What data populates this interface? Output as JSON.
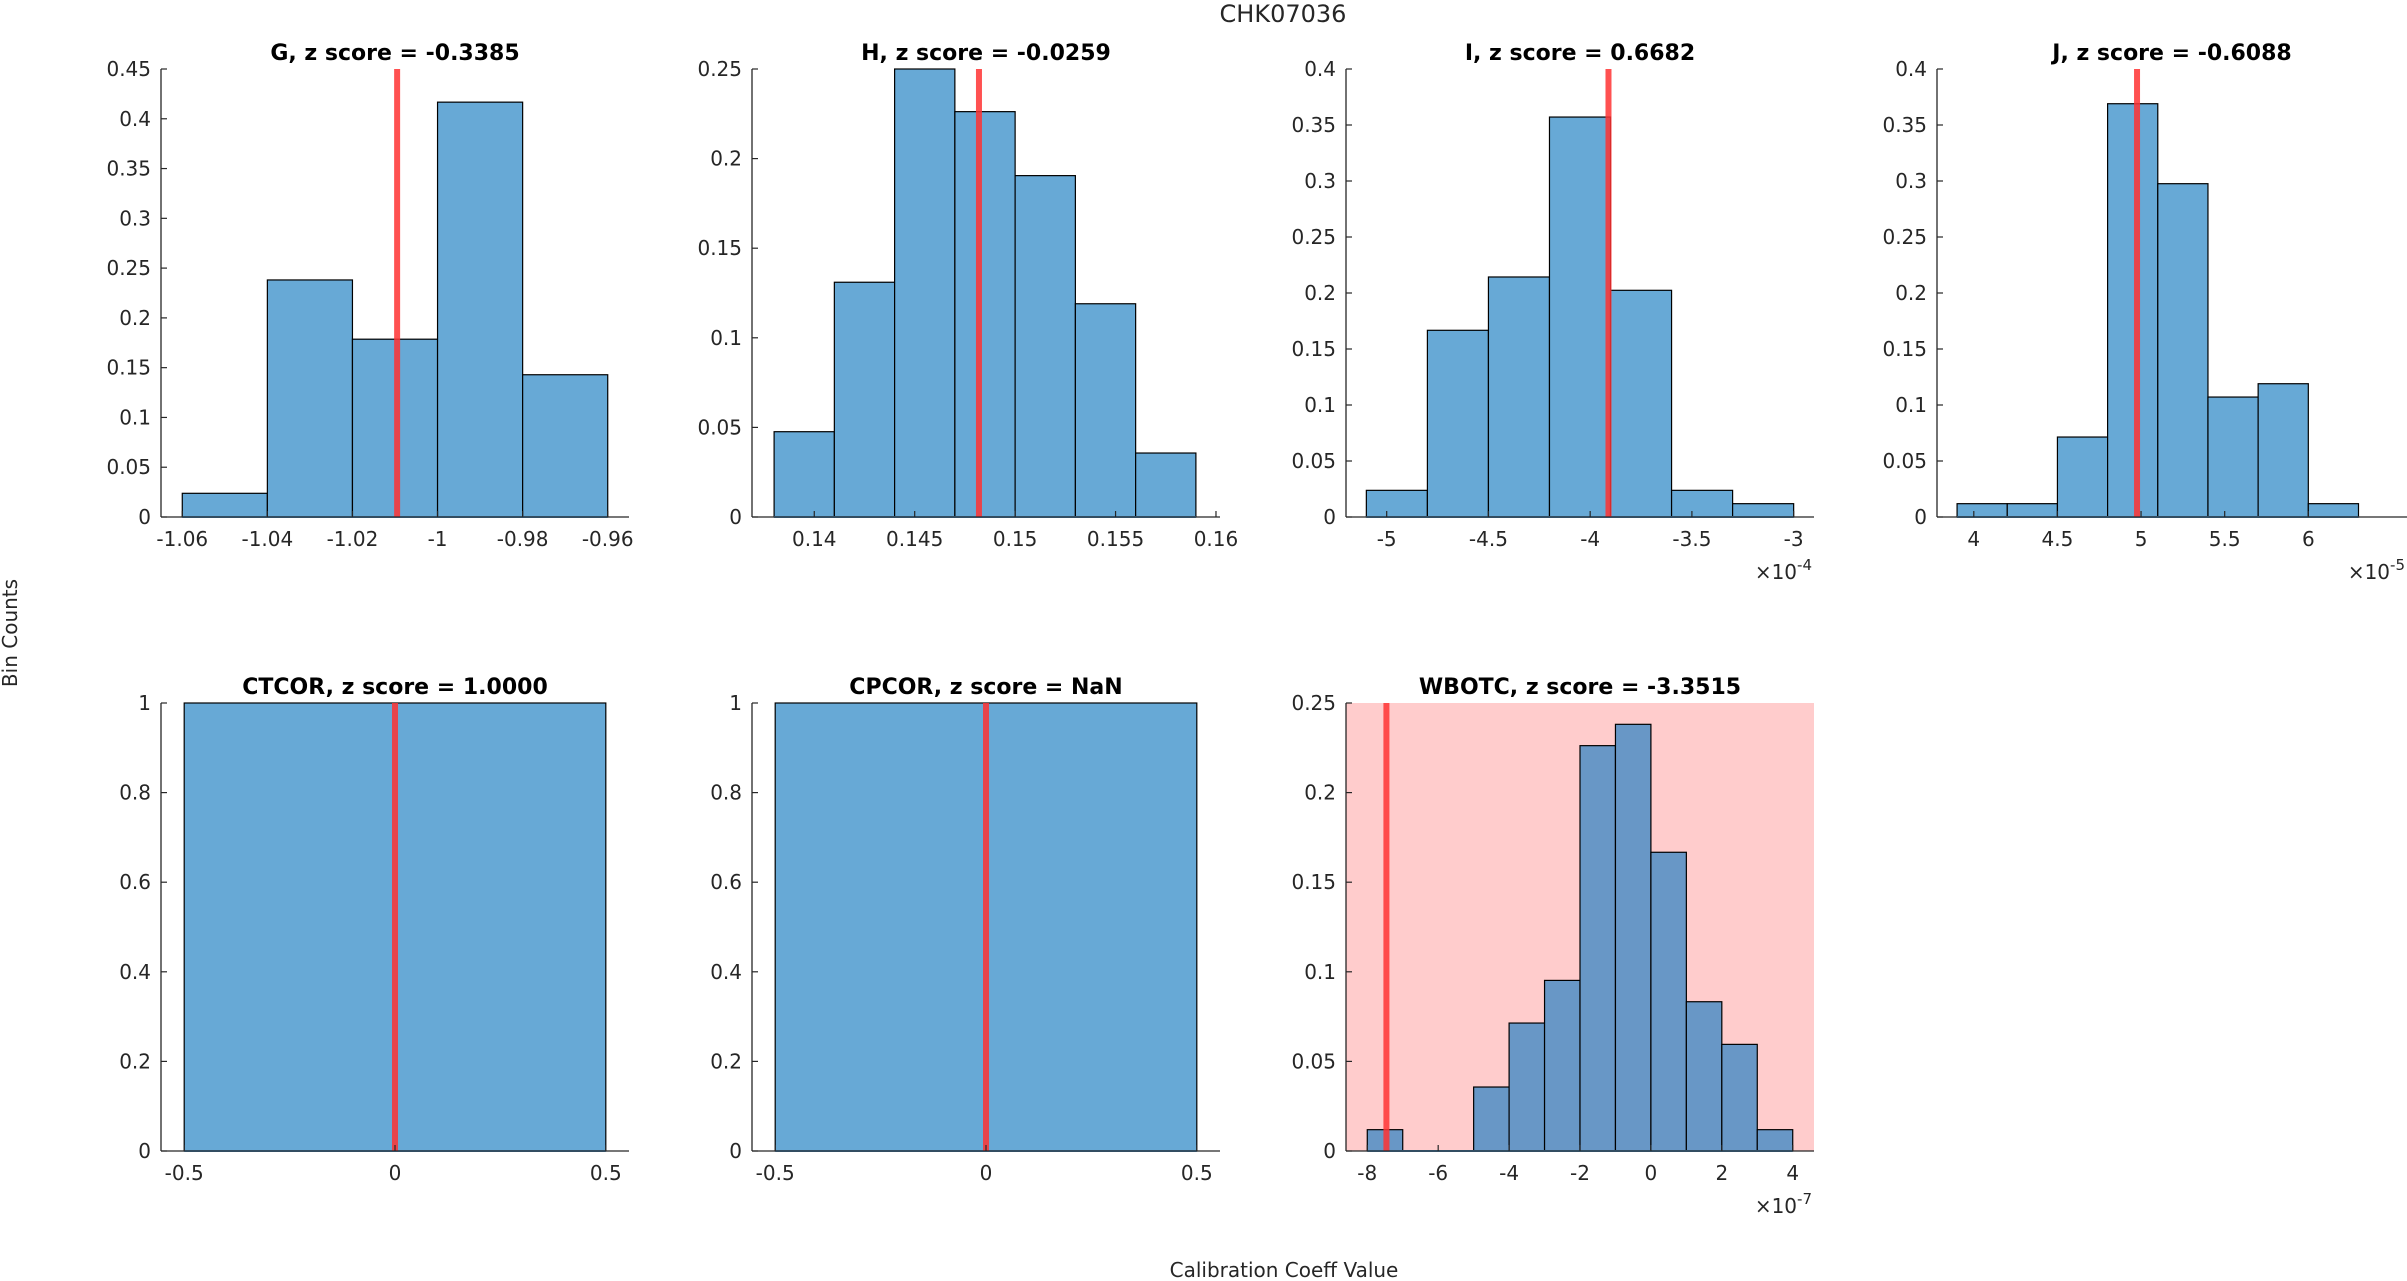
{
  "figure": {
    "title": "CHK07036",
    "ylabel": "Bin Counts",
    "xlabel": "Calibration Coeff Value",
    "colors": {
      "bar_fill": "#67a9d6",
      "bar_fill_on_alert": "#6897c6",
      "bar_edge": "#000000",
      "marker_line": "#ff3333",
      "alert_background": "#ffcccc",
      "axis": "#262626"
    }
  },
  "chart_data": [
    {
      "type": "bar",
      "subtype": "histogram",
      "title": "G, z score = -0.3385",
      "variable": "G",
      "z_score": -0.3385,
      "bin_edges": [
        -1.06,
        -1.04,
        -1.02,
        -1.0,
        -0.98,
        -0.96
      ],
      "values": [
        0.0238,
        0.2381,
        0.1786,
        0.4167,
        0.1429
      ],
      "marker_value": -1.0095,
      "xlim": [
        -1.065,
        -0.955
      ],
      "ylim": [
        0,
        0.45
      ],
      "xticks": [
        -1.06,
        -1.04,
        -1.02,
        -1.0,
        -0.98,
        -0.96
      ],
      "xtick_labels": [
        "-1.06",
        "-1.04",
        "-1.02",
        "-1",
        "-0.98",
        "-0.96"
      ],
      "yticks": [
        0,
        0.05,
        0.1,
        0.15,
        0.2,
        0.25,
        0.3,
        0.35,
        0.4,
        0.45
      ],
      "ytick_labels": [
        "0",
        "0.05",
        "0.1",
        "0.15",
        "0.2",
        "0.25",
        "0.3",
        "0.35",
        "0.4",
        "0.45"
      ],
      "x_exponent": "",
      "alert": false
    },
    {
      "type": "bar",
      "subtype": "histogram",
      "title": "H, z score = -0.0259",
      "variable": "H",
      "z_score": -0.0259,
      "bin_edges": [
        0.138,
        0.141,
        0.144,
        0.147,
        0.15,
        0.153,
        0.156,
        0.159
      ],
      "values": [
        0.0476,
        0.131,
        0.25,
        0.2262,
        0.1905,
        0.119,
        0.0357
      ],
      "marker_value": 0.1482,
      "xlim": [
        0.1369,
        0.1602
      ],
      "ylim": [
        0,
        0.25
      ],
      "xticks": [
        0.14,
        0.145,
        0.15,
        0.155,
        0.16
      ],
      "xtick_labels": [
        "0.14",
        "0.145",
        "0.15",
        "0.155",
        "0.16"
      ],
      "yticks": [
        0,
        0.05,
        0.1,
        0.15,
        0.2,
        0.25
      ],
      "ytick_labels": [
        "0",
        "0.05",
        "0.1",
        "0.15",
        "0.2",
        "0.25"
      ],
      "x_exponent": "",
      "alert": false
    },
    {
      "type": "bar",
      "subtype": "histogram",
      "title": "I, z score = 0.6682",
      "variable": "I",
      "z_score": 0.6682,
      "x_scale": "1e-4",
      "bin_edges": [
        -5.1,
        -4.8,
        -4.5,
        -4.2,
        -3.9,
        -3.6,
        -3.3,
        -3.0
      ],
      "values": [
        0.0238,
        0.1667,
        0.2143,
        0.3571,
        0.2024,
        0.0238,
        0.0119
      ],
      "marker_value": -3.91,
      "xlim": [
        -5.2,
        -2.9
      ],
      "ylim": [
        0,
        0.4
      ],
      "xticks": [
        -5,
        -4.5,
        -4,
        -3.5,
        -3
      ],
      "xtick_labels": [
        "-5",
        "-4.5",
        "-4",
        "-3.5",
        "-3"
      ],
      "yticks": [
        0,
        0.05,
        0.1,
        0.15,
        0.2,
        0.25,
        0.3,
        0.35,
        0.4
      ],
      "ytick_labels": [
        "0",
        "0.05",
        "0.1",
        "0.15",
        "0.2",
        "0.25",
        "0.3",
        "0.35",
        "0.4"
      ],
      "x_exponent": "-4",
      "alert": false
    },
    {
      "type": "bar",
      "subtype": "histogram",
      "title": "J, z score = -0.6088",
      "variable": "J",
      "z_score": -0.6088,
      "x_scale": "1e-5",
      "bin_edges": [
        3.9,
        4.2,
        4.5,
        4.8,
        5.1,
        5.4,
        5.7,
        6.0,
        6.3
      ],
      "values": [
        0.0119,
        0.0119,
        0.0714,
        0.369,
        0.2976,
        0.1071,
        0.119,
        0.0119
      ],
      "marker_value": 4.976,
      "xlim": [
        3.78,
        6.59
      ],
      "ylim": [
        0,
        0.4
      ],
      "xticks": [
        4,
        4.5,
        5,
        5.5,
        6
      ],
      "xtick_labels": [
        "4",
        "4.5",
        "5",
        "5.5",
        "6"
      ],
      "yticks": [
        0,
        0.05,
        0.1,
        0.15,
        0.2,
        0.25,
        0.3,
        0.35,
        0.4
      ],
      "ytick_labels": [
        "0",
        "0.05",
        "0.1",
        "0.15",
        "0.2",
        "0.25",
        "0.3",
        "0.35",
        "0.4"
      ],
      "x_exponent": "-5",
      "alert": false
    },
    {
      "type": "bar",
      "subtype": "histogram",
      "title": "CTCOR, z score = 1.0000",
      "variable": "CTCOR",
      "z_score": 1.0,
      "bin_edges": [
        -0.5,
        0.5
      ],
      "values": [
        1.0
      ],
      "marker_value": 0,
      "xlim": [
        -0.555,
        0.555
      ],
      "ylim": [
        0,
        1
      ],
      "xticks": [
        -0.5,
        0,
        0.5
      ],
      "xtick_labels": [
        "-0.5",
        "0",
        "0.5"
      ],
      "yticks": [
        0,
        0.2,
        0.4,
        0.6,
        0.8,
        1
      ],
      "ytick_labels": [
        "0",
        "0.2",
        "0.4",
        "0.6",
        "0.8",
        "1"
      ],
      "x_exponent": "",
      "alert": false
    },
    {
      "type": "bar",
      "subtype": "histogram",
      "title": "CPCOR, z score = NaN",
      "variable": "CPCOR",
      "z_score": "NaN",
      "bin_edges": [
        -0.5,
        0.5
      ],
      "values": [
        1.0
      ],
      "marker_value": 0,
      "xlim": [
        -0.555,
        0.555
      ],
      "ylim": [
        0,
        1
      ],
      "xticks": [
        -0.5,
        0,
        0.5
      ],
      "xtick_labels": [
        "-0.5",
        "0",
        "0.5"
      ],
      "yticks": [
        0,
        0.2,
        0.4,
        0.6,
        0.8,
        1
      ],
      "ytick_labels": [
        "0",
        "0.2",
        "0.4",
        "0.6",
        "0.8",
        "1"
      ],
      "x_exponent": "",
      "alert": false
    },
    {
      "type": "bar",
      "subtype": "histogram",
      "title": "WBOTC, z score = -3.3515",
      "variable": "WBOTC",
      "z_score": -3.3515,
      "x_scale": "1e-7",
      "bin_edges": [
        -8,
        -7,
        -6,
        -5,
        -4,
        -3,
        -2,
        -1,
        0,
        1,
        2,
        3,
        4
      ],
      "values": [
        0.0119,
        0,
        0,
        0.0357,
        0.0714,
        0.0952,
        0.2262,
        0.2381,
        0.1667,
        0.0833,
        0.0595,
        0.0119
      ],
      "marker_value": -7.46,
      "xlim": [
        -8.6,
        4.6
      ],
      "ylim": [
        0,
        0.25
      ],
      "xticks": [
        -8,
        -6,
        -4,
        -2,
        0,
        2,
        4
      ],
      "xtick_labels": [
        "-8",
        "-6",
        "-4",
        "-2",
        "0",
        "2",
        "4"
      ],
      "yticks": [
        0,
        0.05,
        0.1,
        0.15,
        0.2,
        0.25
      ],
      "ytick_labels": [
        "0",
        "0.05",
        "0.1",
        "0.15",
        "0.2",
        "0.25"
      ],
      "x_exponent": "-7",
      "alert": true
    }
  ]
}
